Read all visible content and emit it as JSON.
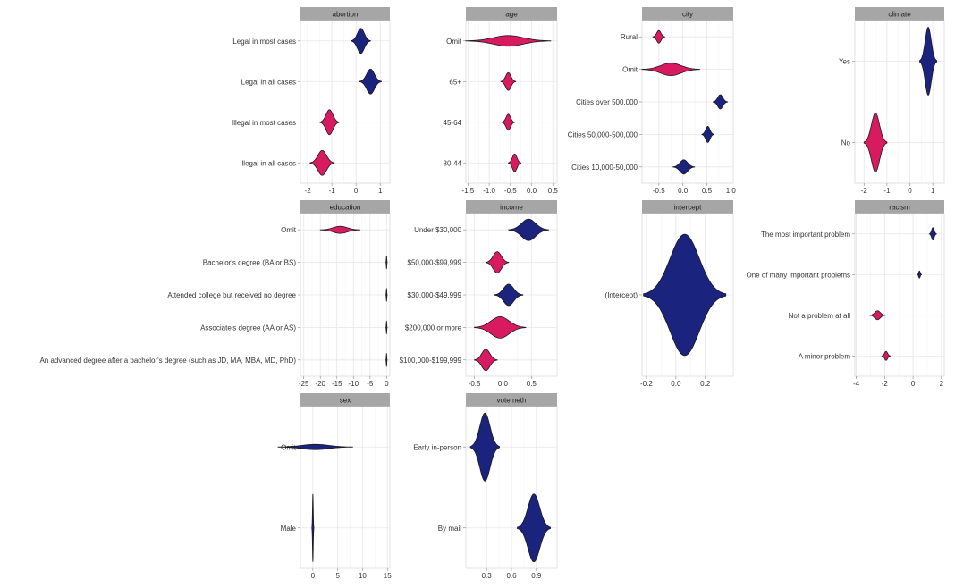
{
  "colors": {
    "negative": "#d81b60",
    "positive": "#1a237e",
    "outline": "#1a1a1a",
    "strip": "#a6a6a6",
    "grid": "#e6e6e6",
    "panel_border": "#cccccc"
  },
  "chart_data": [
    {
      "type": "violin",
      "title": "abortion",
      "categories": [
        "Legal in most cases",
        "Legal in all cases",
        "Illegal in most cases",
        "Illegal in all cases"
      ],
      "values": [
        0.2,
        0.6,
        -1.1,
        -1.4
      ],
      "spreads": [
        0.8,
        0.9,
        0.8,
        1.0
      ],
      "xlim": [
        -2.3,
        1.4
      ],
      "xticks": [
        -2,
        -1,
        0,
        1
      ],
      "xtick_labels": [
        "-2",
        "-1",
        "0",
        "1"
      ]
    },
    {
      "type": "violin",
      "title": "age",
      "categories": [
        "Omit",
        "65+",
        "45-64",
        "30-44"
      ],
      "values": [
        -0.55,
        -0.55,
        -0.55,
        -0.4
      ],
      "spreads": [
        2.0,
        0.35,
        0.3,
        0.3
      ],
      "xlim": [
        -1.55,
        0.6
      ],
      "xticks": [
        -1.5,
        -1.0,
        -0.5,
        0.0,
        0.5
      ],
      "xtick_labels": [
        "-1.5",
        "-1.0",
        "-0.5",
        "0.0",
        "0.5"
      ]
    },
    {
      "type": "violin",
      "title": "city",
      "categories": [
        "Rural",
        "Omit",
        "Cities over 500,000",
        "Cities 50,000-500,000",
        "Cities 10,000-50,000"
      ],
      "values": [
        -0.5,
        -0.25,
        0.78,
        0.52,
        0.02
      ],
      "spreads": [
        0.25,
        1.2,
        0.3,
        0.25,
        0.45
      ],
      "xlim": [
        -0.85,
        1.05
      ],
      "xticks": [
        -0.5,
        0.0,
        0.5,
        1.0
      ],
      "xtick_labels": [
        "-0.5",
        "0.0",
        "0.5",
        "1.0"
      ]
    },
    {
      "type": "violin",
      "title": "climate",
      "categories": [
        "Yes",
        "No"
      ],
      "values": [
        0.8,
        -1.5
      ],
      "spreads": [
        0.75,
        1.0
      ],
      "xlim": [
        -2.4,
        1.5
      ],
      "xticks": [
        -2,
        -1,
        0,
        1
      ],
      "xtick_labels": [
        "-2",
        "-1",
        "0",
        "1"
      ]
    },
    {
      "type": "violin",
      "title": "education",
      "categories": [
        "Omit",
        "Bachelor's degree (BA or BS)",
        "Attended college but received no degree",
        "Associate's degree (AA or AS)",
        "An advanced degree after a bachelor's degree (such as JD, MA, MBA, MD, PhD)"
      ],
      "values": [
        -14,
        0,
        0,
        0,
        0
      ],
      "spreads": [
        12,
        0.4,
        0.4,
        0.4,
        0.4
      ],
      "xlim": [
        -26,
        1
      ],
      "xticks": [
        -25,
        -20,
        -15,
        -10,
        -5,
        0
      ],
      "xtick_labels": [
        "-25",
        "-20",
        "-15",
        "-10",
        "-5",
        "0"
      ]
    },
    {
      "type": "violin",
      "title": "income",
      "categories": [
        "Under $30,000",
        "$50,000-$99,999",
        "$30,000-$49,999",
        "$200,000 or more",
        "$100,000-$199,999"
      ],
      "values": [
        0.45,
        -0.1,
        0.1,
        -0.05,
        -0.3
      ],
      "spreads": [
        0.7,
        0.4,
        0.5,
        0.9,
        0.4
      ],
      "xlim": [
        -0.65,
        0.95
      ],
      "xticks": [
        -0.5,
        0.0,
        0.5
      ],
      "xtick_labels": [
        "-0.5",
        "0.0",
        "0.5"
      ]
    },
    {
      "type": "violin",
      "title": "intercept",
      "categories": [
        "(Intercept)"
      ],
      "values": [
        0.06
      ],
      "spreads": [
        0.56
      ],
      "xlim": [
        -0.23,
        0.39
      ],
      "xticks": [
        -0.2,
        0.0,
        0.2
      ],
      "xtick_labels": [
        "-0.2",
        "0.0",
        "0.2"
      ]
    },
    {
      "type": "violin",
      "title": "racism",
      "categories": [
        "The most important problem",
        "One of many important problems",
        "Not a problem at all",
        "A minor problem"
      ],
      "values": [
        1.4,
        0.45,
        -2.5,
        -1.9
      ],
      "spreads": [
        0.5,
        0.3,
        1.1,
        0.6
      ],
      "xlim": [
        -4.1,
        2.2
      ],
      "xticks": [
        -4,
        -2,
        0,
        2
      ],
      "xtick_labels": [
        "-4",
        "-2",
        "0",
        "2"
      ]
    },
    {
      "type": "violin",
      "title": "sex",
      "categories": [
        "Omit",
        "Male"
      ],
      "values": [
        0.5,
        0
      ],
      "spreads": [
        15,
        0.4
      ],
      "xlim": [
        -2.5,
        15.5
      ],
      "xticks": [
        0,
        5,
        10,
        15
      ],
      "xtick_labels": [
        "0",
        "5",
        "10",
        "15"
      ]
    },
    {
      "type": "violin",
      "title": "votemeth",
      "categories": [
        "Early in-person",
        "By mail"
      ],
      "values": [
        0.28,
        0.87
      ],
      "spreads": [
        0.35,
        0.4
      ],
      "xlim": [
        0.05,
        1.15
      ],
      "xticks": [
        0.3,
        0.6,
        0.9
      ],
      "xtick_labels": [
        "0.3",
        "0.6",
        "0.9"
      ]
    }
  ]
}
